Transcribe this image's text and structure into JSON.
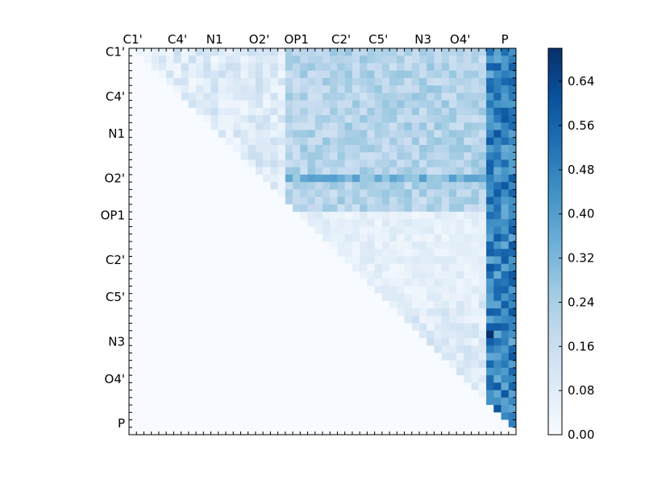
{
  "chart_data": {
    "type": "heatmap",
    "title": "",
    "xlabel": "",
    "ylabel": "",
    "colormap": "Blues",
    "colors": {
      "low": "#f7fbff",
      "high": "#08306b",
      "frame": "#000000"
    },
    "grid": false,
    "legend": "colorbar-right",
    "rows": 52,
    "cols": 52,
    "x_ticks": [
      {
        "label": "C1'",
        "index": 0
      },
      {
        "label": "C4'",
        "index": 6
      },
      {
        "label": "N1",
        "index": 11
      },
      {
        "label": "O2'",
        "index": 17
      },
      {
        "label": "OP1",
        "index": 22
      },
      {
        "label": "C2'",
        "index": 28
      },
      {
        "label": "C5'",
        "index": 33
      },
      {
        "label": "N3",
        "index": 39
      },
      {
        "label": "O4'",
        "index": 44
      },
      {
        "label": "P",
        "index": 50
      }
    ],
    "y_ticks": [
      {
        "label": "C1'",
        "index": 0
      },
      {
        "label": "C4'",
        "index": 6
      },
      {
        "label": "N1",
        "index": 11
      },
      {
        "label": "O2'",
        "index": 17
      },
      {
        "label": "OP1",
        "index": 22
      },
      {
        "label": "C2'",
        "index": 28
      },
      {
        "label": "C5'",
        "index": 33
      },
      {
        "label": "N3",
        "index": 39
      },
      {
        "label": "O4'",
        "index": 44
      },
      {
        "label": "P",
        "index": 50
      }
    ],
    "colorbar": {
      "vmin": 0.0,
      "vmax": 0.7,
      "ticks": [
        "0.00",
        "0.08",
        "0.16",
        "0.24",
        "0.32",
        "0.40",
        "0.48",
        "0.56",
        "0.64"
      ]
    },
    "structure_note_values": {
      "upper_block_value": 0.22,
      "lower_block_value": 0.05,
      "right_column_value": 0.5,
      "row_17_value": 0.36,
      "max_cell_value": 0.7
    }
  }
}
